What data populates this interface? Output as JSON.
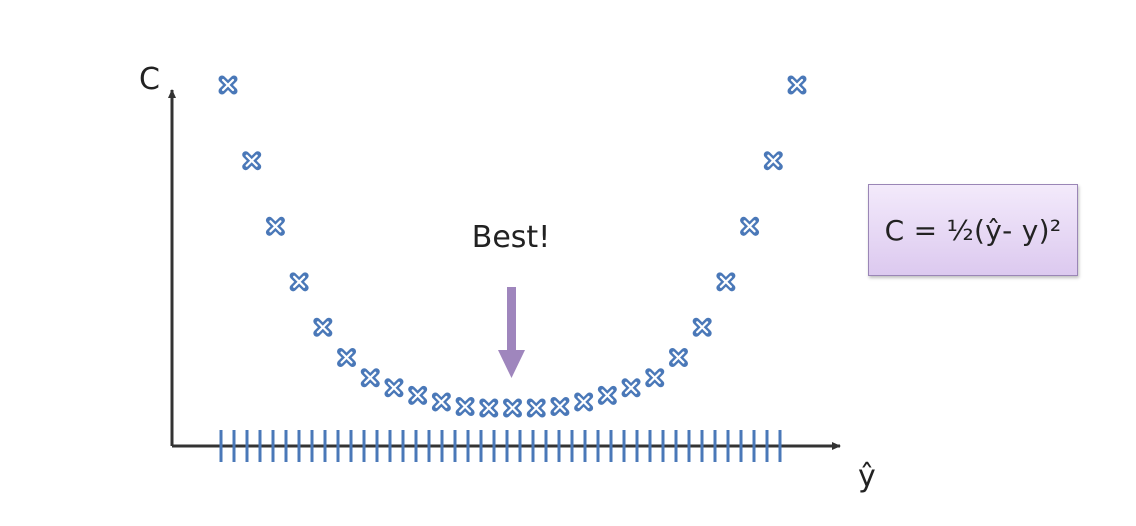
{
  "chart_data": {
    "type": "scatter",
    "xlabel": "ŷ",
    "ylabel": "C",
    "annotation": "Best!",
    "formula": "C = ½(ŷ- y)²",
    "x": [
      0,
      1,
      2,
      3,
      4,
      5,
      6,
      7,
      8,
      9,
      10,
      11,
      12,
      13,
      14,
      15,
      16,
      17,
      18,
      19,
      20,
      21,
      22,
      23,
      24
    ],
    "y": [
      64,
      49,
      36,
      25,
      16,
      10,
      6,
      4,
      2.5,
      1.2,
      0.3,
      0,
      0,
      0,
      0.3,
      1.2,
      2.5,
      4,
      6,
      10,
      16,
      25,
      36,
      49,
      64
    ],
    "rug": 44,
    "colors": {
      "marker": "#4a78b8",
      "arrow": "#9f86bd",
      "axis": "#333333"
    }
  }
}
